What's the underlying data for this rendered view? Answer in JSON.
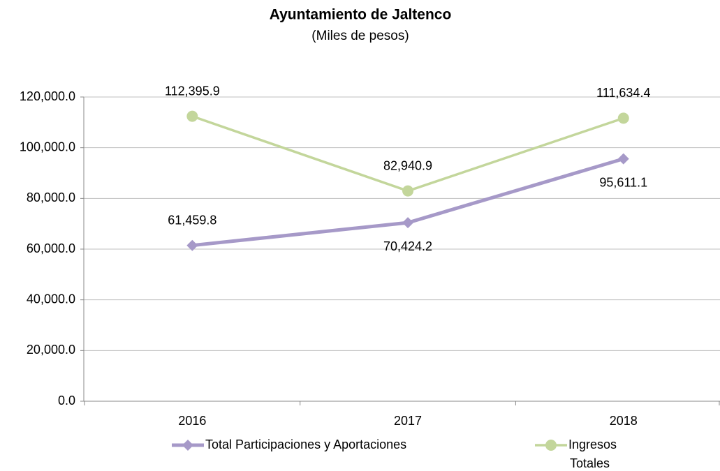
{
  "chart_data": {
    "type": "line",
    "title": "Ayuntamiento de Jaltenco",
    "subtitle": "(Miles de pesos)",
    "categories": [
      "2016",
      "2017",
      "2018"
    ],
    "series": [
      {
        "name": "Total Participaciones y Aportaciones",
        "color": "#a699c8",
        "marker": "diamond",
        "values": [
          61459.8,
          70424.2,
          95611.1
        ],
        "value_labels": [
          "61,459.8",
          "70,424.2",
          "95,611.1"
        ]
      },
      {
        "name": "Ingresos Totales",
        "color": "#c3d69b",
        "marker": "circle",
        "values": [
          112395.9,
          82940.9,
          111634.4
        ],
        "value_labels": [
          "112,395.9",
          "82,940.9",
          "111,634.4"
        ]
      }
    ],
    "ylim": [
      0,
      120000
    ],
    "yticks": [
      {
        "value": 0,
        "label": "0.0"
      },
      {
        "value": 20000,
        "label": "20,000.0"
      },
      {
        "value": 40000,
        "label": "40,000.0"
      },
      {
        "value": 60000,
        "label": "60,000.0"
      },
      {
        "value": 80000,
        "label": "80,000.0"
      },
      {
        "value": 100000,
        "label": "100,000.0"
      },
      {
        "value": 120000,
        "label": "120,000.0"
      }
    ],
    "grid": true,
    "legend": "bottom"
  }
}
